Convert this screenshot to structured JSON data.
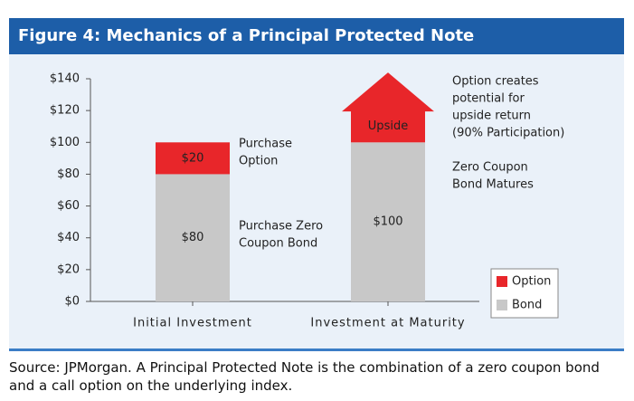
{
  "chart_data": {
    "type": "stacked_bar",
    "title": "Figure 4: Mechanics of a Principal Protected Note",
    "categories": [
      "Initial Investment",
      "Investment at Maturity"
    ],
    "series": [
      {
        "name": "Bond",
        "color": "#c8c8c8",
        "values": [
          80,
          100
        ],
        "value_labels": [
          "$80",
          "$100"
        ]
      },
      {
        "name": "Option",
        "color": "#e8262a",
        "values": [
          20,
          20
        ],
        "value_labels": [
          "$20",
          null
        ]
      }
    ],
    "upside_label": "Upside",
    "annotations": [
      [
        "Purchase",
        "Option"
      ],
      [
        "Purchase Zero",
        "Coupon Bond"
      ],
      [
        "Option creates",
        "potential for",
        "upside return",
        "(90% Participation)"
      ],
      [
        "Zero Coupon",
        "Bond Matures"
      ]
    ],
    "ylim": [
      0,
      140
    ],
    "yticks": [
      {
        "value": 0,
        "label": "$0"
      },
      {
        "value": 20,
        "label": "$20"
      },
      {
        "value": 40,
        "label": "$40"
      },
      {
        "value": 60,
        "label": "$60"
      },
      {
        "value": 80,
        "label": "$80"
      },
      {
        "value": 100,
        "label": "$100"
      },
      {
        "value": 120,
        "label": "$120"
      },
      {
        "value": 140,
        "label": "$140"
      }
    ],
    "legend": "lower right",
    "source": "Source: JPMorgan. A Principal Protected Note is the combination of a zero coupon bond and a call option on the underlying index."
  }
}
